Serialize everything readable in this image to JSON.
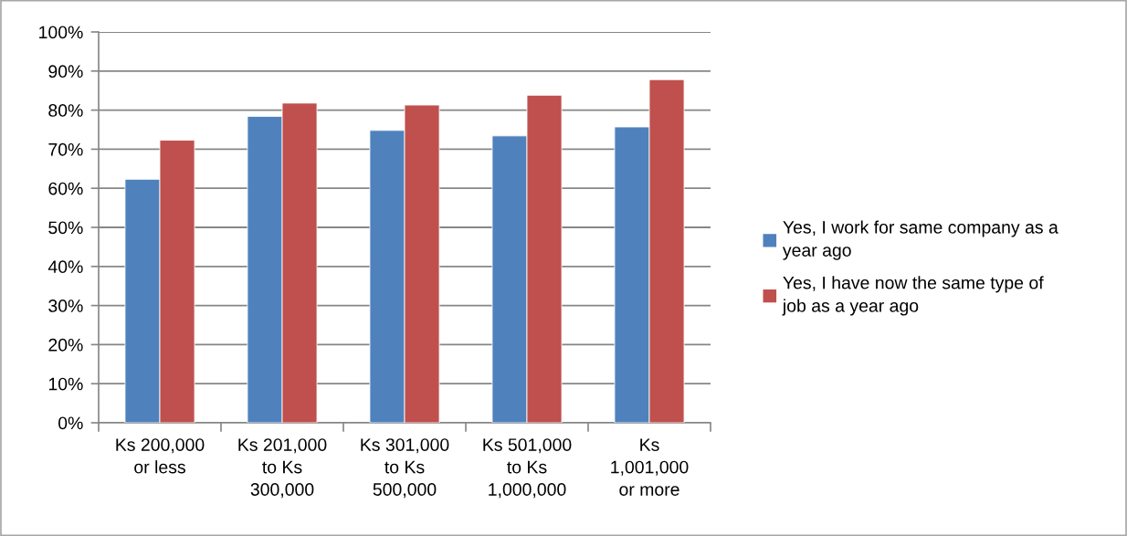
{
  "chart_data": {
    "type": "bar",
    "categories": [
      "Ks 200,000\nor less",
      "Ks 201,000\nto Ks\n300,000",
      "Ks 301,000\nto Ks\n500,000",
      "Ks 501,000\nto Ks\n1,000,000",
      "Ks\n1,001,000\nor more"
    ],
    "series": [
      {
        "name": "Yes, I work for same company as a\nyear ago",
        "color": "#4f81bd",
        "values": [
          62.3,
          78.4,
          74.8,
          73.4,
          75.7
        ]
      },
      {
        "name": "Yes, I have now the same type of\njob as a year ago",
        "color": "#c0504d",
        "values": [
          72.3,
          81.8,
          81.3,
          83.8,
          87.8
        ]
      }
    ],
    "ylim": [
      0,
      100
    ],
    "yticks": [
      {
        "value": 0,
        "label": "0%"
      },
      {
        "value": 10,
        "label": "10%"
      },
      {
        "value": 20,
        "label": "20%"
      },
      {
        "value": 30,
        "label": "30%"
      },
      {
        "value": 40,
        "label": "40%"
      },
      {
        "value": 50,
        "label": "50%"
      },
      {
        "value": 60,
        "label": "60%"
      },
      {
        "value": 70,
        "label": "70%"
      },
      {
        "value": 80,
        "label": "80%"
      },
      {
        "value": 90,
        "label": "90%"
      },
      {
        "value": 100,
        "label": "100%"
      }
    ],
    "grid": "y",
    "legend": "right"
  }
}
